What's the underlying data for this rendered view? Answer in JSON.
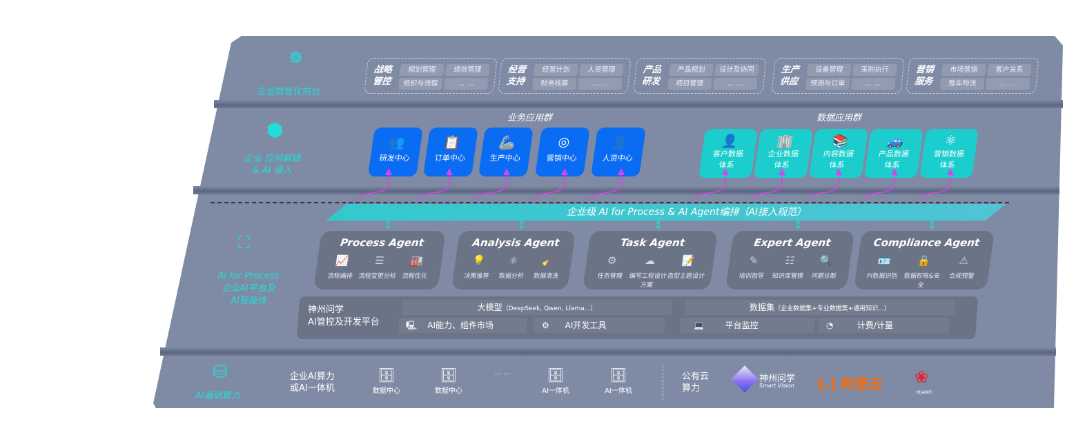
{
  "layers": {
    "front": {
      "label": "企业数智化前台",
      "icon": "brain-icon",
      "groups": [
        {
          "title": [
            "战略",
            "管控"
          ],
          "items": [
            "规划管理",
            "绩效管理",
            "组织与流程",
            "… …"
          ]
        },
        {
          "title": [
            "经营",
            "支持"
          ],
          "items": [
            "经营计划",
            "人资管理",
            "财务核算",
            "… …"
          ]
        },
        {
          "title": [
            "产品",
            "研发"
          ],
          "items": [
            "产品规划",
            "设计及协同",
            "项目管理",
            "… …"
          ]
        },
        {
          "title": [
            "生产",
            "供应"
          ],
          "items": [
            "设备管理",
            "采购执行",
            "预测与订单",
            "… …"
          ]
        },
        {
          "title": [
            "营销",
            "服务"
          ],
          "items": [
            "市场营销",
            "客户关系",
            "整车物流",
            "… …"
          ]
        }
      ]
    },
    "apps": {
      "label": [
        "企业 应用解耦",
        "& AI 侵入"
      ],
      "icon": "molecule-icon",
      "business_title": "业务应用群",
      "business": [
        {
          "label": "研发中心",
          "icon": "team-icon"
        },
        {
          "label": "订单中心",
          "icon": "clipboard-icon"
        },
        {
          "label": "生产中心",
          "icon": "robot-arm-icon"
        },
        {
          "label": "营销中心",
          "icon": "target-icon"
        },
        {
          "label": "人资中心",
          "icon": "people-icon"
        }
      ],
      "data_title": "数据应用群",
      "data": [
        {
          "label": [
            "客户数据",
            "体系"
          ],
          "icon": "user-icon"
        },
        {
          "label": [
            "企业数据",
            "体系"
          ],
          "icon": "building-icon"
        },
        {
          "label": [
            "内容数据",
            "体系"
          ],
          "icon": "books-icon"
        },
        {
          "label": [
            "产品数据",
            "体系"
          ],
          "icon": "car-icon"
        },
        {
          "label": [
            "营销数据",
            "体系"
          ],
          "icon": "atom-icon"
        }
      ]
    },
    "ai": {
      "label": [
        "AI for Process",
        "企业AI平台及",
        "AI智能体"
      ],
      "icon": "face-scan-icon",
      "banner": "企业级 AI for Process & AI Agent编排（AI接入规范）",
      "agents": [
        {
          "title": "Process Agent",
          "items": [
            "流程编排",
            "流程变更分析",
            "流程优化"
          ]
        },
        {
          "title": "Analysis Agent",
          "items": [
            "决策推荐",
            "数据分析",
            "数据清洗"
          ]
        },
        {
          "title": "Task Agent",
          "items": [
            "任务管理",
            "编写工程设计方案",
            "造型主题设计"
          ]
        },
        {
          "title": "Expert Agent",
          "items": [
            "培训指导",
            "知识库管理",
            "问题诊断"
          ]
        },
        {
          "title": "Compliance Agent",
          "items": [
            "PI数据识别",
            "数据权限&安全",
            "合规预警"
          ]
        }
      ],
      "platform": {
        "title": [
          "神州问学",
          "AI管控及开发平台"
        ],
        "model": "大模型",
        "model_note": "（DeepSeek, Qwen, Llama...）",
        "dataset": "数据集",
        "dataset_note": "（企业数据集+专业数据集+通用知识...）",
        "tools": [
          "AI能力、组件市场",
          "AI开发工具",
          "平台监控",
          "计费/计量"
        ]
      }
    },
    "compute": {
      "label": "AI基础算力",
      "icon": "database-icon",
      "enterprise": [
        "企业AI算力",
        "或AI一体机"
      ],
      "servers": [
        "数据中心",
        "数据中心",
        "… …",
        "AI一体机",
        "AI一体机"
      ],
      "cloud": [
        "公有云",
        "算力"
      ],
      "vendors": {
        "shenzhou": "神州问学",
        "shenzhou_sub": "Smart Vision",
        "aliyun": "阿里云",
        "huawei": "HUAWEI"
      },
      "colors": {
        "aliyun": "#ff6a00",
        "huawei": "#e8212d"
      }
    }
  },
  "colors": {
    "panel": "#7f8ba5",
    "cyan": "#22dcd8",
    "blue": "#0a6cf2",
    "teal": "#1bcdcc",
    "card": "#6b7386",
    "link": "#e040e8"
  }
}
